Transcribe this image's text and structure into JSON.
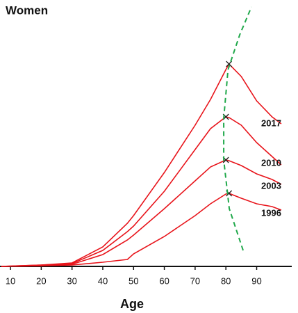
{
  "chart_data": {
    "type": "line",
    "title": "Women",
    "x_label": "Age",
    "x": [
      7,
      20,
      30,
      40,
      48,
      50,
      60,
      70,
      75,
      80,
      81,
      85,
      90,
      95,
      98
    ],
    "series": [
      {
        "name": "2017",
        "color": "#e8141b",
        "values": [
          0,
          2,
          5,
          28,
          62,
          73,
          135,
          203,
          240,
          283,
          291,
          273,
          238,
          215,
          205
        ]
      },
      {
        "name": "2010",
        "color": "#e8141b",
        "values": [
          0,
          2,
          4,
          23,
          50,
          58,
          108,
          168,
          198,
          215,
          214,
          203,
          178,
          158,
          146
        ]
      },
      {
        "name": "2003",
        "color": "#e8141b",
        "values": [
          0,
          1,
          3,
          17,
          38,
          45,
          83,
          123,
          143,
          153,
          152,
          145,
          133,
          125,
          118
        ]
      },
      {
        "name": "1996",
        "color": "#e8141b",
        "values": [
          0,
          1,
          2,
          6,
          10,
          18,
          43,
          73,
          90,
          104,
          105,
          98,
          90,
          86,
          81
        ]
      }
    ],
    "trend": {
      "color": "#1fa84a",
      "x": [
        85.6,
        81.1,
        79.3,
        79.3,
        80.7,
        84.5,
        88.3
      ],
      "values": [
        23,
        83,
        153,
        213,
        283,
        333,
        373
      ]
    },
    "xlim": [
      6.6,
      101.4
    ],
    "ylim": [
      0,
      378
    ],
    "xticks": [
      10,
      20,
      30,
      40,
      50,
      60,
      70,
      80,
      90
    ]
  }
}
